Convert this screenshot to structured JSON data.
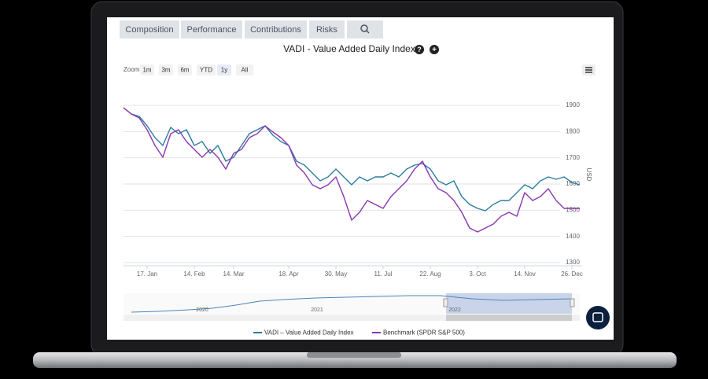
{
  "tabs": [
    "Composition",
    "Performance",
    "Contributions",
    "Risks"
  ],
  "title_icons": [
    "?",
    "+"
  ],
  "zoom": {
    "label": "Zoom",
    "buttons": [
      "1m",
      "3m",
      "6m",
      "YTD",
      "1y",
      "All"
    ]
  },
  "navigator": {
    "labels": [
      "2020",
      "2021",
      "2022"
    ]
  },
  "chart_data": {
    "type": "line",
    "title": "VADI - Value Added Daily Index",
    "ylabel": "USD",
    "categories": [
      null,
      null,
      null,
      "17. Jan",
      null,
      null,
      null,
      null,
      null,
      "14. Feb",
      null,
      null,
      null,
      null,
      "14. Mar",
      null,
      null,
      null,
      null,
      null,
      null,
      "18. Apr",
      null,
      null,
      null,
      null,
      null,
      "30. May",
      null,
      null,
      null,
      null,
      null,
      "11. Jul",
      null,
      null,
      null,
      null,
      null,
      "22. Aug",
      null,
      null,
      null,
      null,
      null,
      "3. Oct",
      null,
      null,
      null,
      null,
      null,
      "14. Nov",
      null,
      null,
      null,
      null,
      null,
      "26. Dec",
      null
    ],
    "series": [
      {
        "name": "VADI – Value Added Daily Index",
        "color": "#2b7ca0",
        "values": [
          1891,
          1867,
          1858,
          1822,
          1777,
          1747,
          1816,
          1792,
          1807,
          1747,
          1762,
          1717,
          1747,
          1687,
          1702,
          1747,
          1792,
          1807,
          1822,
          1786,
          1762,
          1747,
          1687,
          1672,
          1642,
          1612,
          1627,
          1657,
          1627,
          1597,
          1627,
          1612,
          1627,
          1627,
          1642,
          1627,
          1657,
          1672,
          1678,
          1657,
          1612,
          1597,
          1612,
          1552,
          1522,
          1507,
          1498,
          1522,
          1537,
          1537,
          1567,
          1597,
          1582,
          1612,
          1627,
          1618,
          1627,
          1606,
          1597
        ]
      },
      {
        "name": "Benchmark (SPDR S&P 500)",
        "color": "#8a36b0",
        "values": [
          1891,
          1867,
          1852,
          1807,
          1747,
          1702,
          1792,
          1807,
          1762,
          1732,
          1702,
          1732,
          1702,
          1657,
          1717,
          1732,
          1777,
          1792,
          1822,
          1798,
          1777,
          1747,
          1672,
          1642,
          1597,
          1582,
          1597,
          1627,
          1552,
          1462,
          1492,
          1537,
          1522,
          1507,
          1552,
          1582,
          1612,
          1657,
          1687,
          1627,
          1582,
          1567,
          1537,
          1492,
          1432,
          1417,
          1432,
          1447,
          1477,
          1492,
          1477,
          1567,
          1537,
          1552,
          1582,
          1537,
          1507,
          1507,
          1507
        ]
      }
    ],
    "ylim": [
      1300,
      1900
    ],
    "yticks": [
      1300,
      1400,
      1500,
      1600,
      1700,
      1800,
      1900
    ],
    "grid": true
  }
}
